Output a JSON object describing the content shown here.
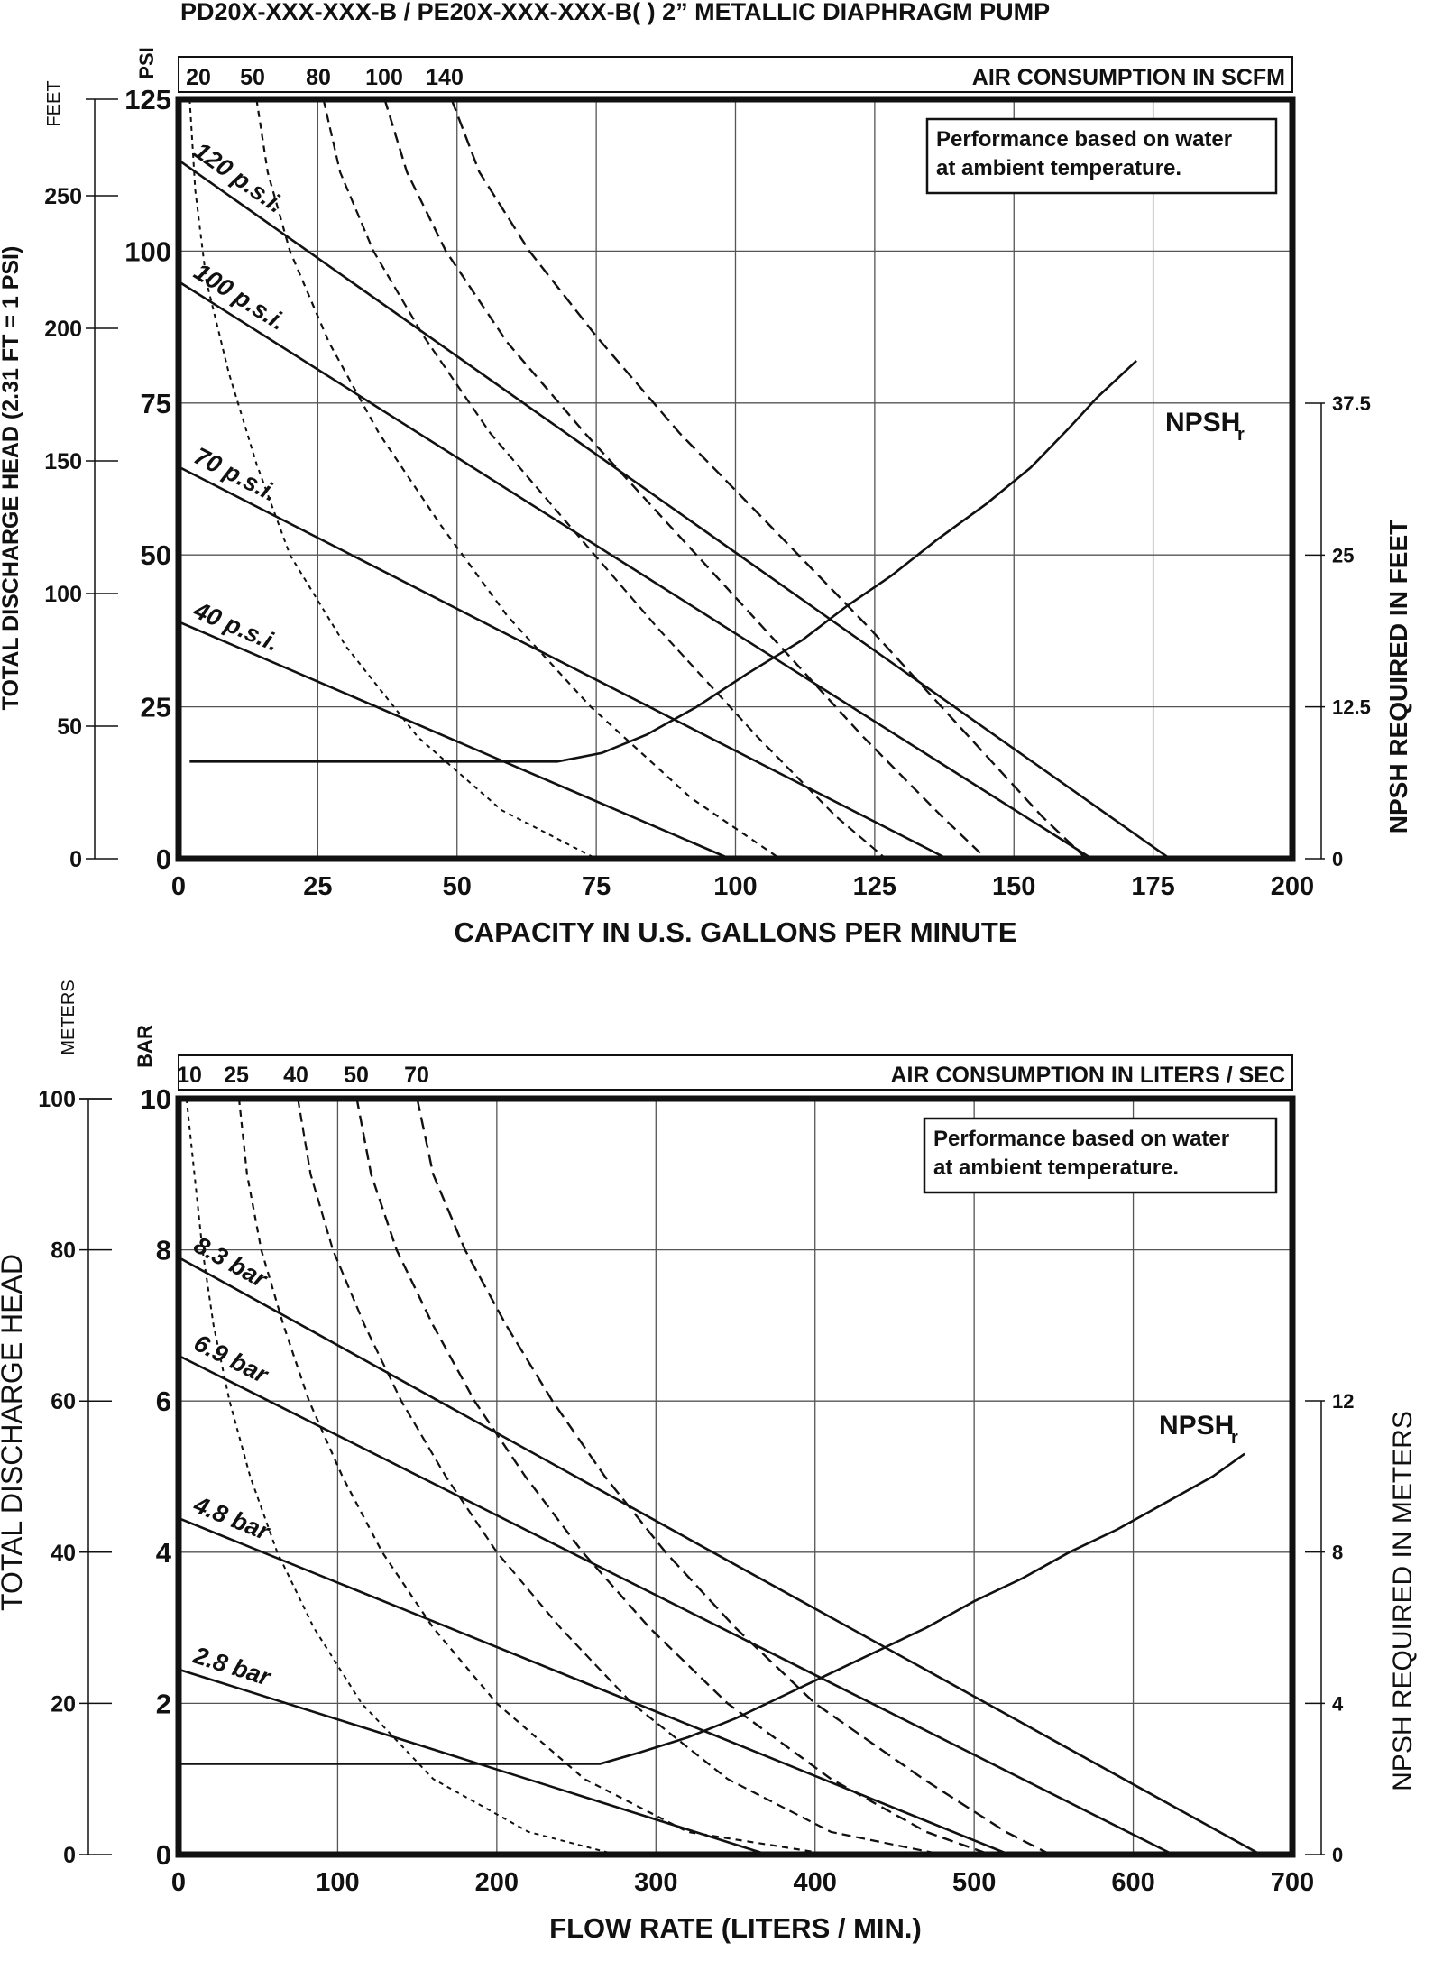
{
  "title": "PD20X-XXX-XXX-B / PE20X-XXX-XXX-B( )   2” METALLIC DIAPHRAGM PUMP",
  "chart_data": [
    {
      "type": "line",
      "xlabel": "CAPACITY IN U.S. GALLONS PER MINUTE",
      "ylabel": "TOTAL DISCHARGE HEAD (2.31 FT = 1 PSI)",
      "y_psi_unit": "PSI",
      "y_feet_unit": "FEET",
      "y2label": "NPSH REQUIRED IN FEET",
      "air_label": "AIR CONSUMPTION IN SCFM",
      "note_lines": [
        "Performance based on water",
        "at ambient temperature."
      ],
      "xlim": [
        0,
        200
      ],
      "ylim": [
        0,
        125
      ],
      "x_ticks": [
        "0",
        "25",
        "50",
        "75",
        "100",
        "125",
        "150",
        "175",
        "200"
      ],
      "y_psi_ticks": [
        "0",
        "25",
        "50",
        "75",
        "100",
        "125"
      ],
      "y_feet_ticks": [
        "0",
        "50",
        "100",
        "150",
        "200",
        "250"
      ],
      "y2_ticks": [
        "0",
        "12.5",
        "25",
        "37.5"
      ],
      "grid": true,
      "pressure_curves": [
        {
          "name": "40 p.s.i.",
          "points": [
            [
              0,
              39
            ],
            [
              99,
              0
            ]
          ]
        },
        {
          "name": "70 p.s.i.",
          "points": [
            [
              0,
              64.5
            ],
            [
              138,
              0
            ]
          ]
        },
        {
          "name": "100 p.s.i.",
          "points": [
            [
              0,
              95
            ],
            [
              164,
              0
            ]
          ]
        },
        {
          "name": "120 p.s.i.",
          "points": [
            [
              0,
              115
            ],
            [
              178,
              0
            ]
          ]
        }
      ],
      "air_curves": [
        {
          "name": "20",
          "points": [
            [
              2,
              125
            ],
            [
              3,
              110
            ],
            [
              5,
              95
            ],
            [
              9,
              80
            ],
            [
              14,
              65
            ],
            [
              20,
              50
            ],
            [
              30,
              35
            ],
            [
              43,
              20
            ],
            [
              58,
              8
            ],
            [
              75,
              0
            ]
          ]
        },
        {
          "name": "50",
          "points": [
            [
              14,
              125
            ],
            [
              16,
              113
            ],
            [
              20,
              100
            ],
            [
              27,
              85
            ],
            [
              36,
              70
            ],
            [
              47,
              55
            ],
            [
              59,
              40
            ],
            [
              74,
              25
            ],
            [
              92,
              10
            ],
            [
              108,
              0
            ]
          ]
        },
        {
          "name": "80",
          "points": [
            [
              26,
              125
            ],
            [
              29,
              113
            ],
            [
              35,
              100
            ],
            [
              44,
              86
            ],
            [
              56,
              70
            ],
            [
              70,
              55
            ],
            [
              86,
              38
            ],
            [
              104,
              20
            ],
            [
              118,
              7
            ],
            [
              127,
              0
            ]
          ]
        },
        {
          "name": "100",
          "points": [
            [
              37,
              125
            ],
            [
              41,
              113
            ],
            [
              48,
              100
            ],
            [
              59,
              85
            ],
            [
              73,
              70
            ],
            [
              88,
              55
            ],
            [
              105,
              38
            ],
            [
              123,
              20
            ],
            [
              137,
              7
            ],
            [
              145,
              0
            ]
          ]
        },
        {
          "name": "140",
          "points": [
            [
              49,
              125
            ],
            [
              54,
              113
            ],
            [
              63,
              100
            ],
            [
              75,
              86
            ],
            [
              90,
              70
            ],
            [
              106,
              55
            ],
            [
              124,
              38
            ],
            [
              142,
              20
            ],
            [
              155,
              7
            ],
            [
              163,
              0
            ]
          ]
        }
      ],
      "npsh_label": "NPSH",
      "npsh_label_sub": "r",
      "npsh_curve": {
        "name": "NPSHr",
        "points_npsh_ft": [
          [
            2,
            8
          ],
          [
            68,
            8
          ],
          [
            76,
            8.7
          ],
          [
            84,
            10.2
          ],
          [
            93,
            12.5
          ],
          [
            102,
            15.2
          ],
          [
            112,
            18
          ],
          [
            120,
            20.8
          ],
          [
            128,
            23.3
          ],
          [
            136,
            26.2
          ],
          [
            145,
            29.2
          ],
          [
            153,
            32.2
          ],
          [
            160,
            35.5
          ],
          [
            165,
            38
          ],
          [
            172,
            41
          ]
        ]
      }
    },
    {
      "type": "line",
      "xlabel": "FLOW RATE (LITERS / MIN.)",
      "ylabel": "TOTAL DISCHARGE HEAD",
      "y_bar_unit": "BAR",
      "y_m_unit": "METERS",
      "y2label": "NPSH REQUIRED IN METERS",
      "air_label": "AIR CONSUMPTION IN LITERS / SEC",
      "note_lines": [
        "Performance based on water",
        "at ambient temperature."
      ],
      "xlim": [
        0,
        700
      ],
      "ylim": [
        0,
        10
      ],
      "x_ticks": [
        "0",
        "100",
        "200",
        "300",
        "400",
        "500",
        "600",
        "700"
      ],
      "y_bar_ticks": [
        "0",
        "2",
        "4",
        "6",
        "8",
        "10"
      ],
      "y_m_ticks": [
        "0",
        "20",
        "40",
        "60",
        "80",
        "100"
      ],
      "y2_ticks": [
        "0",
        "4",
        "8",
        "12"
      ],
      "grid": true,
      "pressure_curves": [
        {
          "name": "2.8 bar",
          "points": [
            [
              0,
              2.45
            ],
            [
              370,
              0
            ]
          ]
        },
        {
          "name": "4.8 bar",
          "points": [
            [
              0,
              4.45
            ],
            [
              522,
              0
            ]
          ]
        },
        {
          "name": "6.9 bar",
          "points": [
            [
              0,
              6.6
            ],
            [
              625,
              0
            ]
          ]
        },
        {
          "name": "8.3 bar",
          "points": [
            [
              0,
              7.9
            ],
            [
              680,
              0
            ]
          ]
        }
      ],
      "air_curves": [
        {
          "name": "10",
          "points": [
            [
              5,
              10
            ],
            [
              10,
              9
            ],
            [
              15,
              8
            ],
            [
              22,
              7
            ],
            [
              32,
              6
            ],
            [
              45,
              5
            ],
            [
              62,
              4
            ],
            [
              85,
              3
            ],
            [
              115,
              2
            ],
            [
              160,
              1
            ],
            [
              220,
              0.3
            ],
            [
              275,
              0
            ]
          ]
        },
        {
          "name": "25",
          "points": [
            [
              38,
              10
            ],
            [
              43,
              9
            ],
            [
              52,
              8
            ],
            [
              66,
              7
            ],
            [
              82,
              6
            ],
            [
              103,
              5
            ],
            [
              128,
              4
            ],
            [
              160,
              3
            ],
            [
              200,
              2
            ],
            [
              255,
              1
            ],
            [
              320,
              0.3
            ],
            [
              410,
              0
            ]
          ]
        },
        {
          "name": "40",
          "points": [
            [
              75,
              10
            ],
            [
              83,
              9
            ],
            [
              97,
              8
            ],
            [
              117,
              7
            ],
            [
              140,
              6
            ],
            [
              168,
              5
            ],
            [
              200,
              4
            ],
            [
              240,
              3
            ],
            [
              285,
              2
            ],
            [
              345,
              1
            ],
            [
              410,
              0.3
            ],
            [
              480,
              0
            ]
          ]
        },
        {
          "name": "50",
          "points": [
            [
              112,
              10
            ],
            [
              121,
              9
            ],
            [
              137,
              8
            ],
            [
              160,
              7
            ],
            [
              186,
              6
            ],
            [
              218,
              5
            ],
            [
              254,
              4
            ],
            [
              296,
              3
            ],
            [
              345,
              2
            ],
            [
              410,
              1
            ],
            [
              470,
              0.3
            ],
            [
              510,
              0
            ]
          ]
        },
        {
          "name": "70",
          "points": [
            [
              150,
              10
            ],
            [
              160,
              9
            ],
            [
              180,
              8
            ],
            [
              206,
              7
            ],
            [
              235,
              6
            ],
            [
              268,
              5
            ],
            [
              306,
              4
            ],
            [
              350,
              3
            ],
            [
              400,
              2
            ],
            [
              468,
              1
            ],
            [
              520,
              0.3
            ],
            [
              548,
              0
            ]
          ]
        }
      ],
      "npsh_label": "NPSH",
      "npsh_label_sub": "r",
      "npsh_curve": {
        "name": "NPSHr",
        "points_npsh_m": [
          [
            0,
            2.4
          ],
          [
            265,
            2.4
          ],
          [
            290,
            2.7
          ],
          [
            320,
            3.1
          ],
          [
            350,
            3.6
          ],
          [
            380,
            4.2
          ],
          [
            410,
            4.8
          ],
          [
            440,
            5.4
          ],
          [
            470,
            6
          ],
          [
            500,
            6.7
          ],
          [
            530,
            7.3
          ],
          [
            560,
            8
          ],
          [
            590,
            8.6
          ],
          [
            620,
            9.3
          ],
          [
            650,
            10
          ],
          [
            670,
            10.6
          ]
        ]
      }
    }
  ]
}
